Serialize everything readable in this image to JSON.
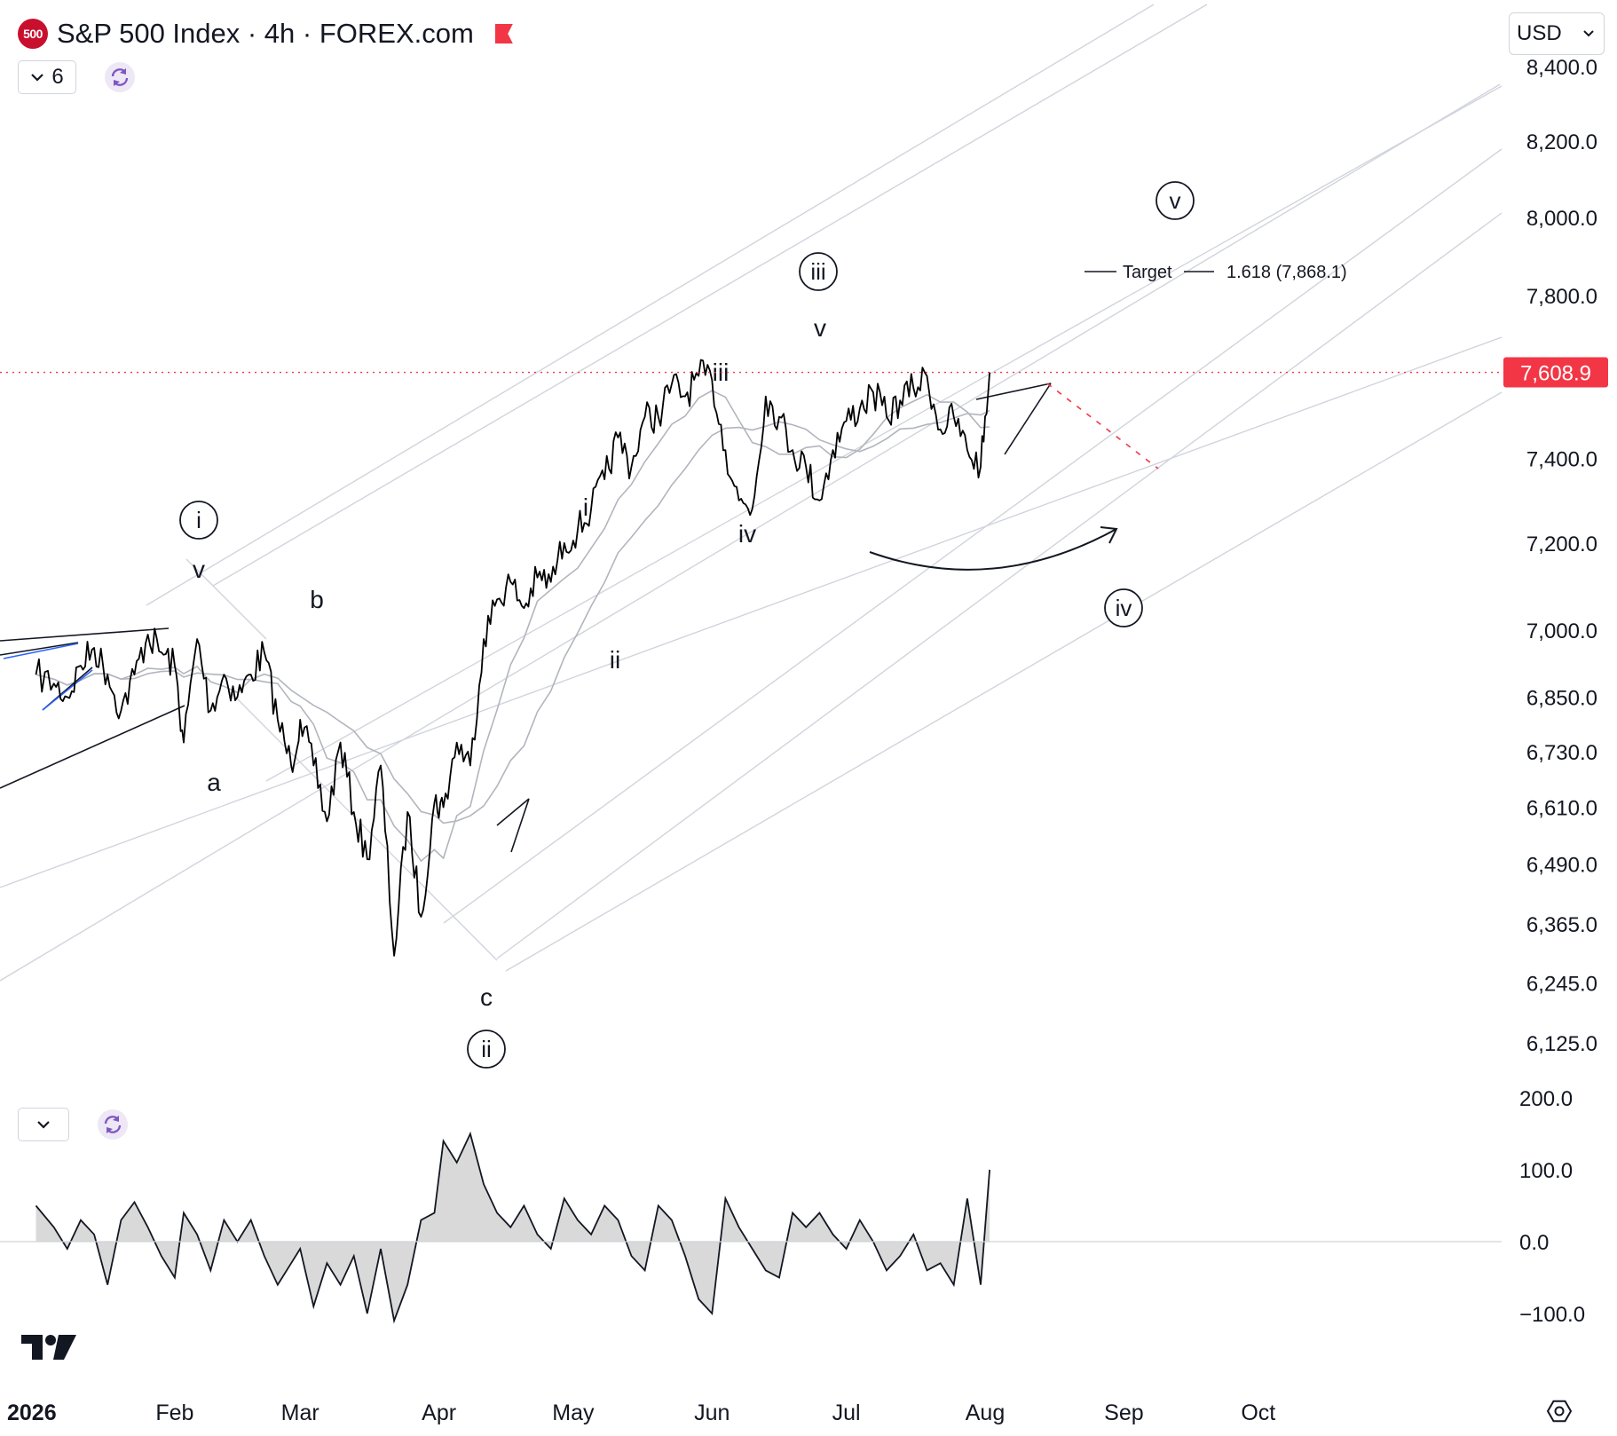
{
  "header": {
    "symbol_badge": "500",
    "title": "S&P 500 Index · 4h · FOREX.com",
    "flag_color": "#f23645",
    "legend_toggle_count": "6",
    "currency": "USD"
  },
  "icons": {
    "collapse": "chevron-down-icon",
    "refresh": "refresh-icon",
    "settings": "gear-icon",
    "logo": "tradingview-logo-icon"
  },
  "colors": {
    "price_line": "#000000",
    "ma_line": "#b2b5be",
    "channel_line": "#d1d4dc",
    "current_price_label": "#f23645",
    "oscillator_fill": "#d9d9d9"
  },
  "chart_data": [
    {
      "type": "line",
      "title": "S&P 500 Index · 4h · FOREX.com",
      "price_scale": [
        6125,
        6245,
        6365,
        6490,
        6610,
        6730,
        6850,
        7000,
        7200,
        7400,
        7608.9,
        7800,
        8000,
        8200,
        8400
      ],
      "y_tick_labels": [
        "8,400.0",
        "8,200.0",
        "8,000.0",
        "7,800.0",
        "7,400.0",
        "7,200.0",
        "7,000.0",
        "6,850.0",
        "6,730.0",
        "6,610.0",
        "6,490.0",
        "6,365.0",
        "6,245.0",
        "6,125.0"
      ],
      "y_tick_values": [
        8400,
        8200,
        8000,
        7800,
        7400,
        7200,
        7000,
        6850,
        6730,
        6610,
        6490,
        6365,
        6245,
        6125
      ],
      "log_scale": true,
      "x_tick_labels": [
        "2026",
        "Feb",
        "Mar",
        "Apr",
        "May",
        "Jun",
        "Jul",
        "Aug",
        "Sep",
        "Oct"
      ],
      "x_tick_dates": [
        "2026-01-01",
        "2026-02-01",
        "2026-03-01",
        "2026-04-01",
        "2026-05-01",
        "2026-06-01",
        "2026-07-01",
        "2026-08-01",
        "2026-09-01",
        "2026-10-01"
      ],
      "current_price": {
        "value": 7608.9,
        "label": "7,608.9"
      },
      "series": [
        {
          "x": [
            "2026-01-01",
            "2026-01-05",
            "2026-01-08",
            "2026-01-11",
            "2026-01-14",
            "2026-01-17",
            "2026-01-20",
            "2026-01-23",
            "2026-01-26",
            "2026-01-29",
            "2026-02-01",
            "2026-02-03",
            "2026-02-06",
            "2026-02-09",
            "2026-02-12",
            "2026-02-15",
            "2026-02-18",
            "2026-02-21",
            "2026-02-24",
            "2026-02-27",
            "2026-03-01",
            "2026-03-04",
            "2026-03-07",
            "2026-03-10",
            "2026-03-13",
            "2026-03-16",
            "2026-03-19",
            "2026-03-22",
            "2026-03-25",
            "2026-03-28",
            "2026-03-31",
            "2026-04-02",
            "2026-04-05",
            "2026-04-08",
            "2026-04-11",
            "2026-04-14",
            "2026-04-17",
            "2026-04-20",
            "2026-04-23",
            "2026-04-26",
            "2026-04-29",
            "2026-05-02",
            "2026-05-05",
            "2026-05-08",
            "2026-05-11",
            "2026-05-14",
            "2026-05-17",
            "2026-05-20",
            "2026-05-23",
            "2026-05-26",
            "2026-05-29",
            "2026-06-01",
            "2026-06-04",
            "2026-06-07",
            "2026-06-10",
            "2026-06-13",
            "2026-06-16",
            "2026-06-19",
            "2026-06-22",
            "2026-06-25",
            "2026-06-28",
            "2026-07-01",
            "2026-07-04",
            "2026-07-07",
            "2026-07-10",
            "2026-07-13",
            "2026-07-16",
            "2026-07-19",
            "2026-07-22",
            "2026-07-25",
            "2026-07-28",
            "2026-07-31",
            "2026-08-02"
          ],
          "y": [
            6900,
            6880,
            6850,
            6920,
            6960,
            6900,
            6820,
            6900,
            6990,
            6950,
            6920,
            6750,
            6980,
            6820,
            6900,
            6850,
            6900,
            6950,
            6800,
            6700,
            6800,
            6700,
            6580,
            6750,
            6600,
            6500,
            6700,
            6300,
            6600,
            6380,
            6620,
            6610,
            6750,
            6700,
            6980,
            7070,
            7110,
            7050,
            7120,
            7110,
            7200,
            7230,
            7280,
            7350,
            7450,
            7380,
            7500,
            7500,
            7580,
            7550,
            7600,
            7590,
            7420,
            7300,
            7280,
            7550,
            7500,
            7420,
            7380,
            7300,
            7420,
            7490,
            7520,
            7560,
            7500,
            7540,
            7570,
            7600,
            7470,
            7500,
            7420,
            7380,
            7608.9
          ]
        }
      ],
      "target": {
        "label": "Target",
        "ratio_label": "1.618 (7,868.1)",
        "value": 7868.1
      },
      "wave_labels": [
        {
          "text": "i",
          "circled": true,
          "x": "2026-01-30"
        },
        {
          "text": "v",
          "circled": false,
          "x": "2026-01-30"
        },
        {
          "text": "b",
          "circled": false,
          "x": "2026-02-18"
        },
        {
          "text": "a",
          "circled": false,
          "x": "2026-02-05"
        },
        {
          "text": "c",
          "circled": false,
          "x": "2026-03-31"
        },
        {
          "text": "ii",
          "circled": true,
          "x": "2026-03-31"
        },
        {
          "text": "i",
          "circled": false,
          "x": "2026-04-17"
        },
        {
          "text": "ii",
          "circled": false,
          "x": "2026-04-21"
        },
        {
          "text": "iii",
          "circled": false,
          "x": "2026-05-14"
        },
        {
          "text": "iv",
          "circled": false,
          "x": "2026-05-19"
        },
        {
          "text": "v",
          "circled": false,
          "x": "2026-05-31"
        },
        {
          "text": "iii",
          "circled": true,
          "x": "2026-05-31"
        },
        {
          "text": "iv",
          "circled": true,
          "x": "2026-07-31"
        },
        {
          "text": "v",
          "circled": true,
          "x": "2026-08-04"
        }
      ]
    },
    {
      "type": "area",
      "y_tick_labels": [
        "200.0",
        "100.0",
        "0.0",
        "−100.0"
      ],
      "y_tick_values": [
        200,
        100,
        0,
        -100
      ],
      "ylim": [
        -130,
        200
      ],
      "series": [
        {
          "x": [
            "2026-01-01",
            "2026-01-05",
            "2026-01-08",
            "2026-01-11",
            "2026-01-14",
            "2026-01-17",
            "2026-01-20",
            "2026-01-23",
            "2026-01-26",
            "2026-01-29",
            "2026-02-01",
            "2026-02-03",
            "2026-02-06",
            "2026-02-09",
            "2026-02-12",
            "2026-02-15",
            "2026-02-18",
            "2026-02-21",
            "2026-02-24",
            "2026-02-27",
            "2026-03-01",
            "2026-03-04",
            "2026-03-07",
            "2026-03-10",
            "2026-03-13",
            "2026-03-16",
            "2026-03-19",
            "2026-03-22",
            "2026-03-25",
            "2026-03-28",
            "2026-03-31",
            "2026-04-02",
            "2026-04-05",
            "2026-04-08",
            "2026-04-11",
            "2026-04-14",
            "2026-04-17",
            "2026-04-20",
            "2026-04-23",
            "2026-04-26",
            "2026-04-29",
            "2026-05-02",
            "2026-05-05",
            "2026-05-08",
            "2026-05-11",
            "2026-05-14",
            "2026-05-17",
            "2026-05-20",
            "2026-05-23",
            "2026-05-26",
            "2026-05-29",
            "2026-06-01",
            "2026-06-04",
            "2026-06-07",
            "2026-06-10",
            "2026-06-13",
            "2026-06-16",
            "2026-06-19",
            "2026-06-22",
            "2026-06-25",
            "2026-06-28",
            "2026-07-01",
            "2026-07-04",
            "2026-07-07",
            "2026-07-10",
            "2026-07-13",
            "2026-07-16",
            "2026-07-19",
            "2026-07-22",
            "2026-07-25",
            "2026-07-28",
            "2026-07-31",
            "2026-08-02"
          ],
          "y": [
            50,
            20,
            -10,
            30,
            10,
            -60,
            30,
            55,
            20,
            -20,
            -50,
            40,
            10,
            -40,
            30,
            0,
            30,
            -20,
            -60,
            -30,
            -10,
            -90,
            -30,
            -60,
            -20,
            -100,
            -10,
            -110,
            -60,
            30,
            40,
            140,
            110,
            150,
            80,
            40,
            20,
            50,
            10,
            -10,
            60,
            30,
            10,
            50,
            30,
            -20,
            -40,
            50,
            30,
            -20,
            -80,
            -100,
            60,
            20,
            -10,
            -40,
            -50,
            40,
            20,
            40,
            10,
            -10,
            30,
            0,
            -40,
            -20,
            10,
            -40,
            -30,
            -60,
            60,
            -60,
            100
          ]
        }
      ]
    }
  ]
}
